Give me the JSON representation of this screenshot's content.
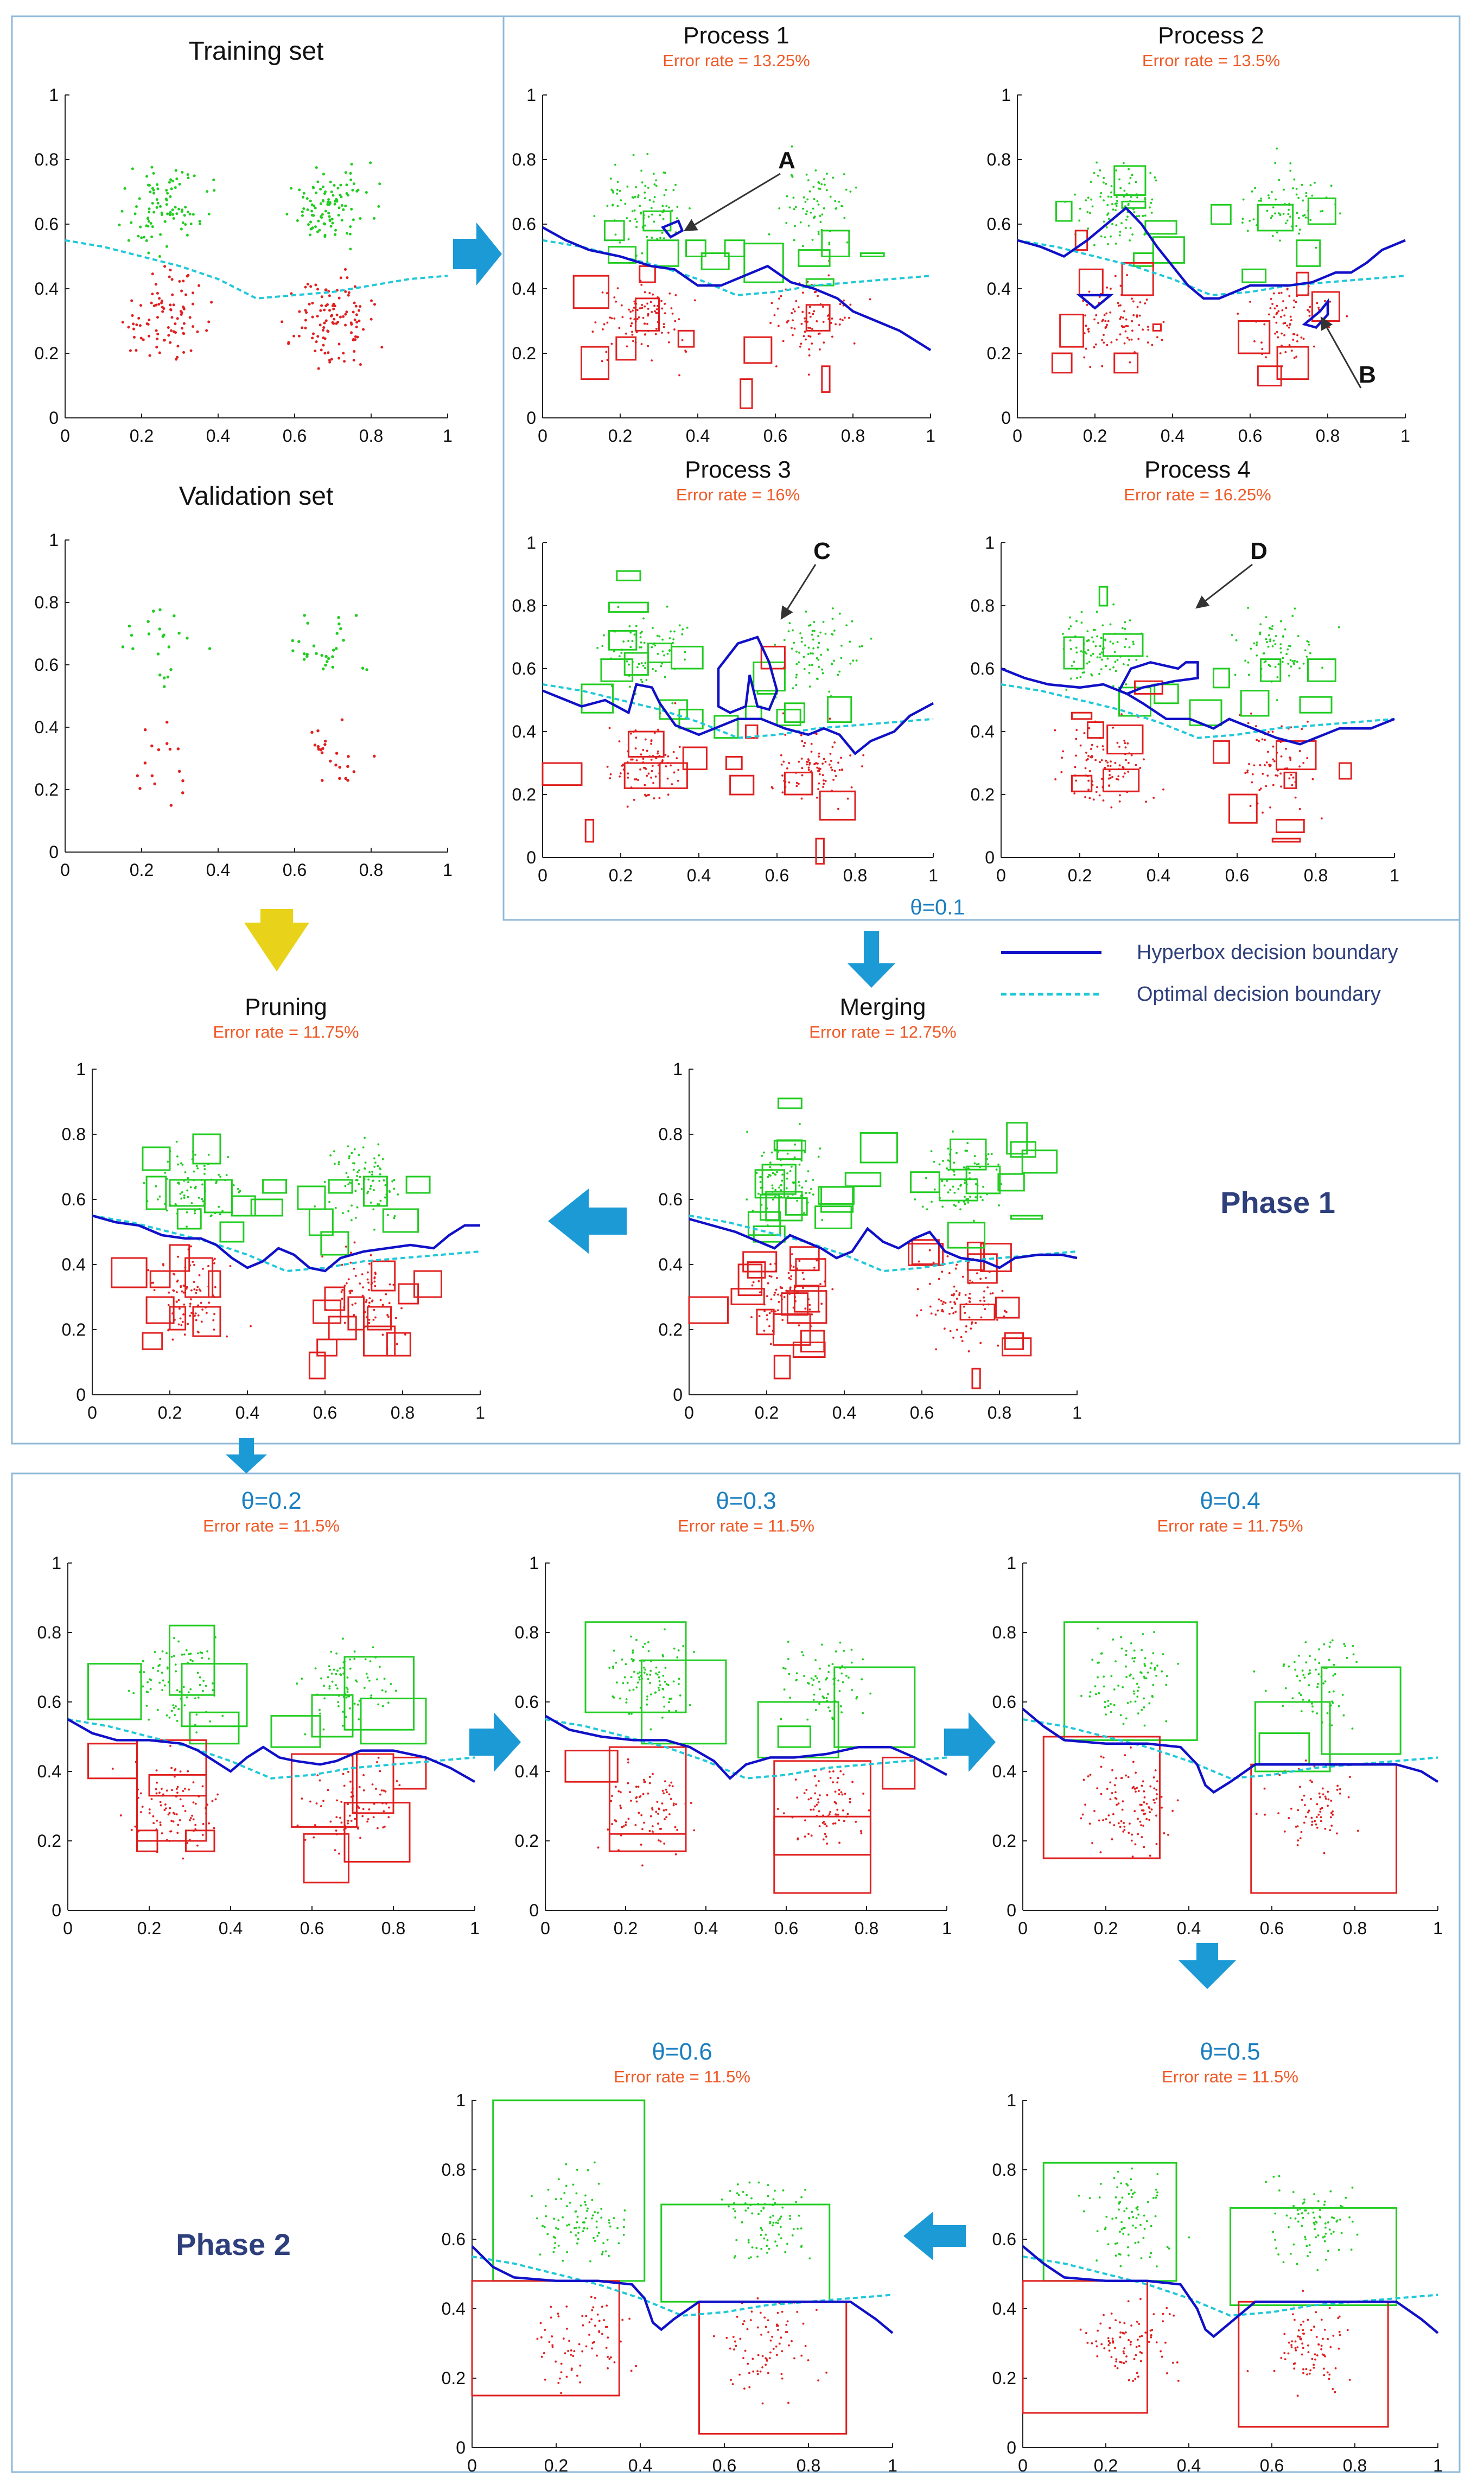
{
  "colors": {
    "class_green": "#22cc22",
    "class_red": "#e02020",
    "hyperbox_boundary": "#1010c8",
    "optimal_boundary": "#20c8d8",
    "arrow_blue": "#1b9ad6",
    "arrow_yellow": "#e8d21a",
    "error_text": "#f05a28",
    "theta_text": "#1a7fc0",
    "phase_text": "#2e3f7c",
    "frame": "#8fb8d8"
  },
  "legend": {
    "hyperbox": "Hyperbox decision boundary",
    "optimal": "Optimal decision boundary"
  },
  "phase1_label": "Phase 1",
  "phase2_label": "Phase 2",
  "theta_processes": "θ=0.1",
  "annotations": [
    "A",
    "B",
    "C",
    "D"
  ],
  "chart_data": [
    {
      "id": "training",
      "type": "scatter",
      "title": "Training set",
      "xlim": [
        0,
        1
      ],
      "ylim": [
        0,
        1
      ],
      "xticks": [
        "0",
        "0.2",
        "0.4",
        "0.6",
        "0.8",
        "1"
      ],
      "yticks": [
        "0",
        "0.2",
        "0.4",
        "0.6",
        "0.8",
        "1"
      ],
      "series": [],
      "points": "dense"
    },
    {
      "id": "validation",
      "type": "scatter",
      "title": "Validation set",
      "xlim": [
        0,
        1
      ],
      "ylim": [
        0,
        1
      ],
      "xticks": [
        "0",
        "0.2",
        "0.4",
        "0.6",
        "0.8",
        "1"
      ],
      "yticks": [
        "0",
        "0.2",
        "0.4",
        "0.6",
        "0.8",
        "1"
      ],
      "points": "sparse"
    },
    {
      "id": "process1",
      "type": "scatter",
      "title": "Process 1",
      "error": "Error rate = 13.25%",
      "xlim": [
        0,
        1
      ],
      "ylim": [
        0,
        1
      ],
      "xticks": [
        "0",
        "0.2",
        "0.4",
        "0.6",
        "0.8",
        "1"
      ],
      "yticks": [
        "0",
        "0.2",
        "0.4",
        "0.6",
        "0.8",
        "1"
      ],
      "boundary": [
        [
          0,
          0.59
        ],
        [
          0.06,
          0.55
        ],
        [
          0.12,
          0.52
        ],
        [
          0.2,
          0.5
        ],
        [
          0.28,
          0.47
        ],
        [
          0.34,
          0.46
        ],
        [
          0.4,
          0.41
        ],
        [
          0.46,
          0.41
        ],
        [
          0.52,
          0.44
        ],
        [
          0.58,
          0.47
        ],
        [
          0.64,
          0.42
        ],
        [
          0.7,
          0.4
        ],
        [
          0.76,
          0.37
        ],
        [
          0.8,
          0.33
        ],
        [
          0.86,
          0.3
        ],
        [
          0.92,
          0.27
        ],
        [
          1,
          0.21
        ]
      ]
    },
    {
      "id": "process2",
      "type": "scatter",
      "title": "Process 2",
      "error": "Error rate = 13.5%",
      "xlim": [
        0,
        1
      ],
      "ylim": [
        0,
        1
      ],
      "xticks": [
        "0",
        "0.2",
        "0.4",
        "0.6",
        "0.8",
        "1"
      ],
      "yticks": [
        "0",
        "0.2",
        "0.4",
        "0.6",
        "0.8",
        "1"
      ],
      "boundary": [
        [
          0,
          0.55
        ],
        [
          0.06,
          0.53
        ],
        [
          0.12,
          0.5
        ],
        [
          0.18,
          0.55
        ],
        [
          0.24,
          0.61
        ],
        [
          0.28,
          0.65
        ],
        [
          0.32,
          0.6
        ],
        [
          0.36,
          0.53
        ],
        [
          0.4,
          0.47
        ],
        [
          0.44,
          0.41
        ],
        [
          0.48,
          0.37
        ],
        [
          0.52,
          0.37
        ],
        [
          0.56,
          0.39
        ],
        [
          0.6,
          0.41
        ],
        [
          0.64,
          0.41
        ],
        [
          0.7,
          0.41
        ],
        [
          0.76,
          0.42
        ],
        [
          0.82,
          0.45
        ],
        [
          0.86,
          0.45
        ],
        [
          0.9,
          0.48
        ],
        [
          0.94,
          0.52
        ],
        [
          1,
          0.55
        ]
      ]
    },
    {
      "id": "process3",
      "type": "scatter",
      "title": "Process 3",
      "error": "Error rate = 16%",
      "xlim": [
        0,
        1
      ],
      "ylim": [
        0,
        1
      ],
      "xticks": [
        "0",
        "0.2",
        "0.4",
        "0.6",
        "0.8",
        "1"
      ],
      "yticks": [
        "0",
        "0.2",
        "0.4",
        "0.6",
        "0.8",
        "1"
      ],
      "boundary": [
        [
          0,
          0.53
        ],
        [
          0.06,
          0.5
        ],
        [
          0.1,
          0.48
        ],
        [
          0.16,
          0.5
        ],
        [
          0.22,
          0.46
        ],
        [
          0.24,
          0.55
        ],
        [
          0.28,
          0.54
        ],
        [
          0.3,
          0.49
        ],
        [
          0.34,
          0.42
        ],
        [
          0.4,
          0.39
        ],
        [
          0.46,
          0.42
        ],
        [
          0.5,
          0.44
        ],
        [
          0.56,
          0.44
        ],
        [
          0.62,
          0.41
        ],
        [
          0.68,
          0.39
        ],
        [
          0.72,
          0.41
        ],
        [
          0.76,
          0.39
        ],
        [
          0.8,
          0.33
        ],
        [
          0.84,
          0.37
        ],
        [
          0.9,
          0.4
        ],
        [
          0.94,
          0.45
        ],
        [
          1,
          0.49
        ]
      ]
    },
    {
      "id": "process4",
      "type": "scatter",
      "title": "Process 4",
      "error": "Error rate = 16.25%",
      "xlim": [
        0,
        1
      ],
      "ylim": [
        0,
        1
      ],
      "xticks": [
        "0",
        "0.2",
        "0.4",
        "0.6",
        "0.8",
        "1"
      ],
      "yticks": [
        "0",
        "0.2",
        "0.4",
        "0.6",
        "0.8",
        "1"
      ],
      "boundary": [
        [
          0,
          0.6
        ],
        [
          0.06,
          0.57
        ],
        [
          0.12,
          0.55
        ],
        [
          0.2,
          0.54
        ],
        [
          0.26,
          0.55
        ],
        [
          0.32,
          0.52
        ],
        [
          0.36,
          0.49
        ],
        [
          0.42,
          0.44
        ],
        [
          0.48,
          0.44
        ],
        [
          0.54,
          0.41
        ],
        [
          0.58,
          0.44
        ],
        [
          0.62,
          0.42
        ],
        [
          0.66,
          0.4
        ],
        [
          0.7,
          0.38
        ],
        [
          0.76,
          0.36
        ],
        [
          0.8,
          0.38
        ],
        [
          0.86,
          0.41
        ],
        [
          0.9,
          0.41
        ],
        [
          0.94,
          0.41
        ],
        [
          1,
          0.44
        ]
      ]
    },
    {
      "id": "pruning",
      "type": "scatter",
      "title": "Pruning",
      "error": "Error rate = 11.75%",
      "xlim": [
        0,
        1
      ],
      "ylim": [
        0,
        1
      ],
      "xticks": [
        "0",
        "0.2",
        "0.4",
        "0.6",
        "0.8",
        "1"
      ],
      "yticks": [
        "0",
        "0.2",
        "0.4",
        "0.6",
        "0.8",
        "1"
      ],
      "boundary": [
        [
          0,
          0.55
        ],
        [
          0.06,
          0.53
        ],
        [
          0.12,
          0.52
        ],
        [
          0.18,
          0.49
        ],
        [
          0.24,
          0.48
        ],
        [
          0.28,
          0.48
        ],
        [
          0.32,
          0.46
        ],
        [
          0.36,
          0.42
        ],
        [
          0.4,
          0.39
        ],
        [
          0.44,
          0.41
        ],
        [
          0.48,
          0.45
        ],
        [
          0.52,
          0.43
        ],
        [
          0.56,
          0.39
        ],
        [
          0.6,
          0.38
        ],
        [
          0.64,
          0.42
        ],
        [
          0.7,
          0.44
        ],
        [
          0.76,
          0.45
        ],
        [
          0.82,
          0.46
        ],
        [
          0.88,
          0.45
        ],
        [
          0.92,
          0.49
        ],
        [
          0.96,
          0.52
        ],
        [
          1,
          0.52
        ]
      ]
    },
    {
      "id": "merging",
      "type": "scatter",
      "title": "Merging",
      "error": "Error rate = 12.75%",
      "xlim": [
        0,
        1
      ],
      "ylim": [
        0,
        1
      ],
      "xticks": [
        "0",
        "0.2",
        "0.4",
        "0.6",
        "0.8",
        "1"
      ],
      "yticks": [
        "0",
        "0.2",
        "0.4",
        "0.6",
        "0.8",
        "1"
      ],
      "boundary": [
        [
          0,
          0.54
        ],
        [
          0.06,
          0.52
        ],
        [
          0.12,
          0.5
        ],
        [
          0.18,
          0.47
        ],
        [
          0.22,
          0.45
        ],
        [
          0.26,
          0.49
        ],
        [
          0.3,
          0.47
        ],
        [
          0.34,
          0.45
        ],
        [
          0.38,
          0.42
        ],
        [
          0.42,
          0.44
        ],
        [
          0.46,
          0.51
        ],
        [
          0.5,
          0.47
        ],
        [
          0.54,
          0.45
        ],
        [
          0.58,
          0.48
        ],
        [
          0.62,
          0.5
        ],
        [
          0.66,
          0.44
        ],
        [
          0.7,
          0.42
        ],
        [
          0.76,
          0.41
        ],
        [
          0.8,
          0.39
        ],
        [
          0.84,
          0.42
        ],
        [
          0.9,
          0.43
        ],
        [
          0.96,
          0.43
        ],
        [
          1,
          0.42
        ]
      ]
    },
    {
      "id": "theta02",
      "type": "scatter",
      "title": "θ=0.2",
      "error": "Error rate = 11.5%",
      "xlim": [
        0,
        1
      ],
      "ylim": [
        0,
        1
      ],
      "xticks": [
        "0",
        "0.2",
        "0.4",
        "0.6",
        "0.8",
        "1"
      ],
      "yticks": [
        "0",
        "0.2",
        "0.4",
        "0.6",
        "0.8",
        "1"
      ],
      "boundary": [
        [
          0,
          0.55
        ],
        [
          0.06,
          0.51
        ],
        [
          0.12,
          0.49
        ],
        [
          0.2,
          0.49
        ],
        [
          0.28,
          0.48
        ],
        [
          0.32,
          0.46
        ],
        [
          0.36,
          0.43
        ],
        [
          0.4,
          0.4
        ],
        [
          0.44,
          0.44
        ],
        [
          0.48,
          0.47
        ],
        [
          0.52,
          0.44
        ],
        [
          0.56,
          0.43
        ],
        [
          0.62,
          0.42
        ],
        [
          0.66,
          0.43
        ],
        [
          0.72,
          0.46
        ],
        [
          0.8,
          0.46
        ],
        [
          0.88,
          0.44
        ],
        [
          0.94,
          0.41
        ],
        [
          1,
          0.37
        ]
      ]
    },
    {
      "id": "theta03",
      "type": "scatter",
      "title": "θ=0.3",
      "error": "Error rate = 11.5%",
      "xlim": [
        0,
        1
      ],
      "ylim": [
        0,
        1
      ],
      "xticks": [
        "0",
        "0.2",
        "0.4",
        "0.6",
        "0.8",
        "1"
      ],
      "yticks": [
        "0",
        "0.2",
        "0.4",
        "0.6",
        "0.8",
        "1"
      ],
      "boundary": [
        [
          0,
          0.56
        ],
        [
          0.06,
          0.52
        ],
        [
          0.14,
          0.5
        ],
        [
          0.22,
          0.49
        ],
        [
          0.3,
          0.49
        ],
        [
          0.36,
          0.47
        ],
        [
          0.42,
          0.43
        ],
        [
          0.46,
          0.38
        ],
        [
          0.5,
          0.42
        ],
        [
          0.56,
          0.44
        ],
        [
          0.62,
          0.44
        ],
        [
          0.7,
          0.45
        ],
        [
          0.78,
          0.47
        ],
        [
          0.86,
          0.47
        ],
        [
          0.92,
          0.44
        ],
        [
          1,
          0.39
        ]
      ]
    },
    {
      "id": "theta04",
      "type": "scatter",
      "title": "θ=0.4",
      "error": "Error rate = 11.75%",
      "xlim": [
        0,
        1
      ],
      "ylim": [
        0,
        1
      ],
      "xticks": [
        "0",
        "0.2",
        "0.4",
        "0.6",
        "0.8",
        "1"
      ],
      "yticks": [
        "0",
        "0.2",
        "0.4",
        "0.6",
        "0.8",
        "1"
      ],
      "boundary": [
        [
          0,
          0.58
        ],
        [
          0.05,
          0.53
        ],
        [
          0.1,
          0.49
        ],
        [
          0.2,
          0.48
        ],
        [
          0.3,
          0.48
        ],
        [
          0.38,
          0.47
        ],
        [
          0.42,
          0.42
        ],
        [
          0.44,
          0.36
        ],
        [
          0.46,
          0.34
        ],
        [
          0.5,
          0.37
        ],
        [
          0.56,
          0.42
        ],
        [
          0.62,
          0.42
        ],
        [
          0.72,
          0.42
        ],
        [
          0.82,
          0.42
        ],
        [
          0.9,
          0.42
        ],
        [
          0.96,
          0.4
        ],
        [
          1,
          0.37
        ]
      ]
    },
    {
      "id": "theta05",
      "type": "scatter",
      "title": "θ=0.5",
      "error": "Error rate = 11.5%",
      "xlim": [
        0,
        1
      ],
      "ylim": [
        0,
        1
      ],
      "xticks": [
        "0",
        "0.2",
        "0.4",
        "0.6",
        "0.8",
        "1"
      ],
      "yticks": [
        "0",
        "0.2",
        "0.4",
        "0.6",
        "0.8",
        "1"
      ],
      "boundary": [
        [
          0,
          0.58
        ],
        [
          0.05,
          0.53
        ],
        [
          0.1,
          0.49
        ],
        [
          0.2,
          0.48
        ],
        [
          0.3,
          0.48
        ],
        [
          0.38,
          0.47
        ],
        [
          0.42,
          0.4
        ],
        [
          0.44,
          0.34
        ],
        [
          0.46,
          0.32
        ],
        [
          0.5,
          0.36
        ],
        [
          0.56,
          0.42
        ],
        [
          0.62,
          0.42
        ],
        [
          0.72,
          0.42
        ],
        [
          0.82,
          0.42
        ],
        [
          0.9,
          0.42
        ],
        [
          0.96,
          0.37
        ],
        [
          1,
          0.33
        ]
      ]
    },
    {
      "id": "theta06",
      "type": "scatter",
      "title": "θ=0.6",
      "error": "Error rate = 11.5%",
      "xlim": [
        0,
        1
      ],
      "ylim": [
        0,
        1
      ],
      "xticks": [
        "0",
        "0.2",
        "0.4",
        "0.6",
        "0.8",
        "1"
      ],
      "yticks": [
        "0",
        "0.2",
        "0.4",
        "0.6",
        "0.8",
        "1"
      ],
      "boundary": [
        [
          0,
          0.58
        ],
        [
          0.05,
          0.52
        ],
        [
          0.1,
          0.49
        ],
        [
          0.2,
          0.48
        ],
        [
          0.3,
          0.48
        ],
        [
          0.38,
          0.47
        ],
        [
          0.41,
          0.43
        ],
        [
          0.43,
          0.36
        ],
        [
          0.45,
          0.34
        ],
        [
          0.48,
          0.37
        ],
        [
          0.54,
          0.42
        ],
        [
          0.62,
          0.42
        ],
        [
          0.72,
          0.42
        ],
        [
          0.82,
          0.42
        ],
        [
          0.9,
          0.42
        ],
        [
          0.96,
          0.37
        ],
        [
          1,
          0.33
        ]
      ]
    }
  ],
  "optimal_boundary": [
    [
      0,
      0.55
    ],
    [
      0.1,
      0.53
    ],
    [
      0.2,
      0.5
    ],
    [
      0.3,
      0.47
    ],
    [
      0.4,
      0.43
    ],
    [
      0.5,
      0.38
    ],
    [
      0.6,
      0.39
    ],
    [
      0.7,
      0.41
    ],
    [
      0.8,
      0.42
    ],
    [
      0.9,
      0.43
    ],
    [
      1,
      0.44
    ]
  ]
}
